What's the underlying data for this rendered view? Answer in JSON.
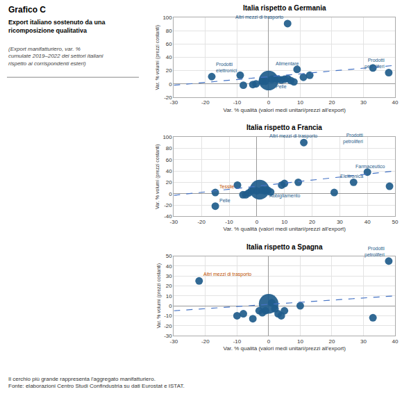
{
  "title": "Grafico C",
  "subtitle": "Export italiano sostenuto da una\nricomposizione qualitativa",
  "annotations": [
    {
      "text": "(Export manifatturiero, var. %\ncumulate 2019–2022 dei settori italiani\nrispetto ai corrispondenti esteri)"
    },
    {
      "text": "Il cerchio più grande rappresenta l'aggregato manifatturiero.\nFonte: elaborazioni Centro Studi Confindustria su dati Eurostat e ISTAT."
    }
  ],
  "chart_data": [
    {
      "type": "scatter",
      "title": "Italia rispetto a Germania",
      "xlabel": "Var. % qualità (valori medi unitari/prezzi all'export)",
      "ylabel": "Var. % volumi (prezzi costanti)",
      "xlim": [
        -30,
        40
      ],
      "ylim": [
        -20,
        100
      ],
      "xticks": [
        -30,
        -20,
        -10,
        0,
        10,
        20,
        30,
        40
      ],
      "yticks": [
        -20,
        0,
        20,
        40,
        60,
        80,
        100
      ],
      "grid": true,
      "series": [
        {
          "type": "scatter",
          "x": [
            -18,
            -9,
            -8,
            -5,
            -4,
            -2,
            -1,
            0,
            1,
            2,
            3,
            4,
            5,
            6,
            6,
            7,
            8,
            9,
            11,
            13,
            33,
            38
          ],
          "values": [
            11,
            13,
            -2,
            -1,
            0,
            4,
            4,
            5,
            7,
            8,
            7,
            6,
            7,
            8,
            91,
            5,
            3,
            22,
            10,
            13,
            24,
            17
          ],
          "sizes": [
            30,
            30,
            30,
            30,
            30,
            30,
            30,
            200,
            30,
            30,
            30,
            30,
            30,
            30,
            30,
            30,
            30,
            30,
            30,
            30,
            30,
            30
          ],
          "color": "#1f5c8b"
        },
        {
          "type": "line",
          "x": [
            -30,
            40
          ],
          "values": [
            -2,
            28
          ],
          "color": "#4472c4",
          "line_style": "dashed"
        }
      ],
      "annotations": [
        {
          "text": "Prodotti\nelettronici",
          "x": -18,
          "y": 11,
          "color": "#1f5c8b"
        },
        {
          "text": "Altri mezzi di trasporto",
          "x": 6,
          "y": 91,
          "color": "#1f5c8b"
        },
        {
          "text": "Alimentare",
          "x": 11,
          "y": 22,
          "color": "#1f5c8b"
        },
        {
          "text": "Pelle",
          "x": 1,
          "y": -13,
          "color": "#1f5c8b"
        },
        {
          "text": "Prodotti\npetroliferi",
          "x": 38,
          "y": 17,
          "color": "#1f5c8b"
        }
      ]
    },
    {
      "type": "scatter",
      "title": "Italia rispetto a Francia",
      "xlabel": "Var. % qualità (valori medi unitari/prezzi all'export)",
      "ylabel": "Var. % volumi (prezzi costanti)",
      "xlim": [
        -30,
        50
      ],
      "ylim": [
        -40,
        100
      ],
      "xticks": [
        -30,
        -20,
        -10,
        0,
        10,
        20,
        30,
        40,
        50
      ],
      "yticks": [
        -40,
        -20,
        0,
        20,
        40,
        60,
        80,
        100
      ],
      "grid": true,
      "series": [
        {
          "type": "scatter",
          "x": [
            -15,
            -15,
            -7,
            -5,
            -4,
            -3,
            -2,
            0,
            1,
            2,
            3,
            4,
            5,
            9,
            10,
            15,
            17,
            28,
            35,
            40,
            48
          ],
          "values": [
            2,
            -22,
            15,
            -2,
            -2,
            1,
            5,
            5,
            7,
            6,
            5,
            6,
            3,
            15,
            18,
            20,
            90,
            2,
            20,
            38,
            13
          ],
          "sizes": [
            30,
            30,
            30,
            30,
            30,
            30,
            30,
            30,
            200,
            30,
            30,
            30,
            30,
            30,
            30,
            30,
            30,
            30,
            30,
            30,
            30
          ],
          "color": "#1f5c8b"
        },
        {
          "type": "line",
          "x": [
            -30,
            50
          ],
          "values": [
            -3,
            40
          ],
          "color": "#4472c4",
          "line_style": "dashed"
        }
      ],
      "annotations": [
        {
          "text": "Tessile",
          "x": -15,
          "y": 2,
          "color": "#c05000"
        },
        {
          "text": "Pelle",
          "x": -15,
          "y": -22,
          "color": "#1f5c8b"
        },
        {
          "text": "Altri mezzi di trasporto",
          "x": 3,
          "y": 90,
          "color": "#1f5c8b"
        },
        {
          "text": "Abbigliamento",
          "x": 3,
          "y": -15,
          "color": "#1f5c8b"
        },
        {
          "text": "Prodotti\npetroliferi",
          "x": 40,
          "y": 80,
          "color": "#1f5c8b"
        },
        {
          "text": "Farmaceutico",
          "x": 48,
          "y": 38,
          "color": "#1f5c8b"
        },
        {
          "text": "Elettronica",
          "x": 40,
          "y": 20,
          "color": "#1f5c8b"
        }
      ]
    },
    {
      "type": "scatter",
      "title": "Italia rispetto a Spagna",
      "xlabel": "Var. % qualità (valori medi unitari/prezzi all'export)",
      "ylabel": "Var. % volumi (prezzi costanti)",
      "xlim": [
        -30,
        40
      ],
      "ylim": [
        -30,
        50
      ],
      "xticks": [
        -30,
        -20,
        -10,
        0,
        10,
        20,
        30,
        40
      ],
      "yticks": [
        -30,
        -20,
        -10,
        0,
        10,
        20,
        30,
        40,
        50
      ],
      "grid": true,
      "series": [
        {
          "type": "scatter",
          "x": [
            -22,
            -10,
            -8,
            -5,
            -3,
            -2,
            -1,
            0,
            1,
            2,
            3,
            4,
            5,
            10,
            33,
            38
          ],
          "values": [
            25,
            -10,
            -8,
            -13,
            -5,
            -7,
            -5,
            2,
            3,
            -3,
            -8,
            -10,
            -5,
            0,
            -12,
            45
          ],
          "sizes": [
            30,
            30,
            30,
            30,
            30,
            30,
            30,
            200,
            30,
            30,
            30,
            30,
            30,
            30,
            30,
            30
          ],
          "color": "#1f5c8b"
        },
        {
          "type": "line",
          "x": [
            -30,
            40
          ],
          "values": [
            -5,
            10
          ],
          "color": "#4472c4",
          "line_style": "dashed"
        }
      ],
      "annotations": [
        {
          "text": "Altri mezzi di trasporto",
          "x": -22,
          "y": 25,
          "color": "#c05000"
        },
        {
          "text": "Prodotti\npetroliferi",
          "x": 38,
          "y": 45,
          "color": "#1f5c8b"
        }
      ]
    }
  ]
}
